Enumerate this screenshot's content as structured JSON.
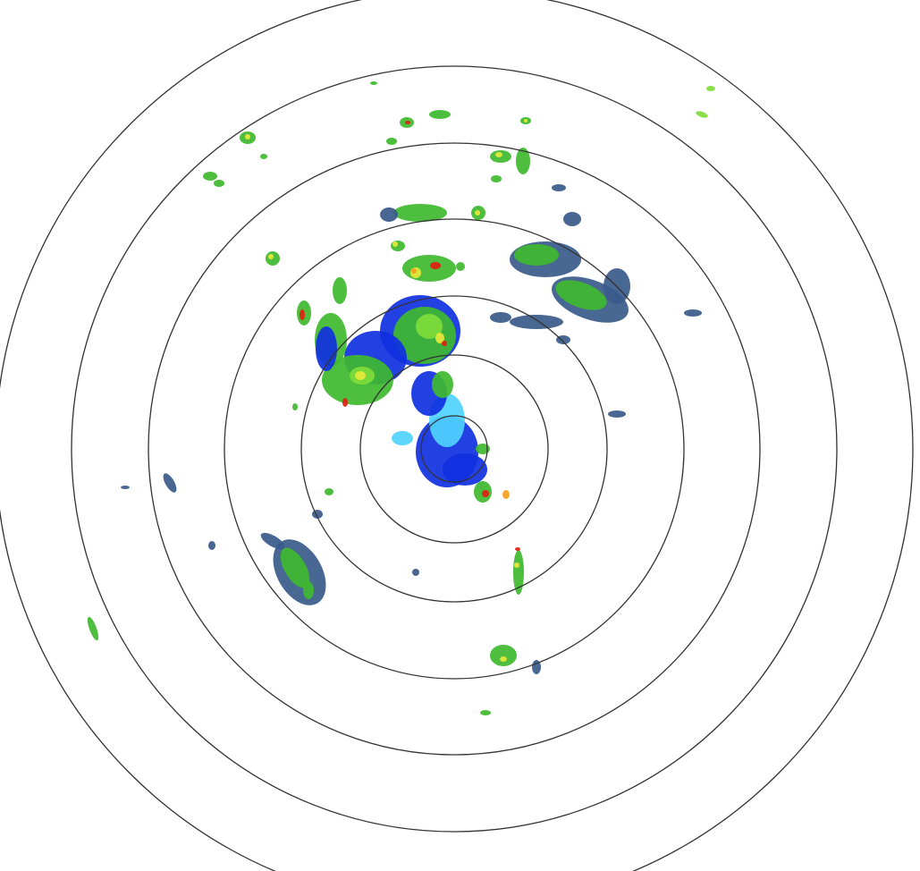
{
  "radar": {
    "range_ring_count": 7,
    "ring_color": "#333333",
    "background": "#ffffff",
    "reflectivity_colors": {
      "light_cyan": "#4fd3ff",
      "blue": "#1030e0",
      "slate": "#3a5a8a",
      "green": "#3fb82f",
      "light_green": "#7fdc3a",
      "yellow": "#e8e83a",
      "orange": "#f5a020",
      "red": "#e02010"
    }
  }
}
